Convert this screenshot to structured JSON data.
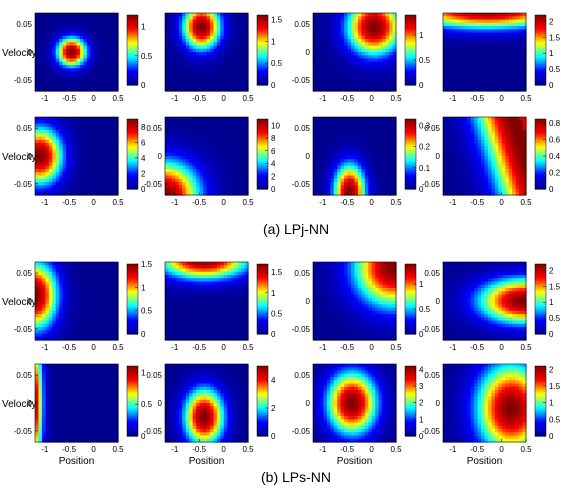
{
  "figure": {
    "caption_a": "(a) LPj-NN",
    "caption_b": "(b) LPs-NN"
  },
  "colormap": [
    "#00008f",
    "#0000ff",
    "#00ffff",
    "#ffff00",
    "#ff0000",
    "#800000"
  ],
  "chart_data": [
    {
      "id": "a-r1-c1",
      "group": "(a) LPj-NN",
      "type": "heatmap",
      "xlabel": "",
      "ylabel": "Velocity",
      "x_ticks": [
        "-1",
        "-0.5",
        "0",
        "0.5"
      ],
      "y_ticks": [
        "0.05",
        "0",
        "-0.05"
      ],
      "xlim": [
        -1.2,
        0.5
      ],
      "ylim": [
        -0.07,
        0.07
      ],
      "colorbar_ticks": [
        "1",
        "0.5",
        "0"
      ],
      "colorbar_range": [
        0,
        1.2
      ],
      "field": {
        "kind": "gauss",
        "cx": -0.45,
        "cy": 0.0,
        "sx": 0.3,
        "sy": 0.026,
        "peak": 1.2
      }
    },
    {
      "id": "a-r1-c2",
      "group": "(a) LPj-NN",
      "type": "heatmap",
      "xlabel": "",
      "ylabel": "",
      "x_ticks": [
        "-1",
        "-0.5",
        "0",
        "0.5"
      ],
      "y_ticks": [],
      "xlim": [
        -1.2,
        0.5
      ],
      "ylim": [
        -0.07,
        0.07
      ],
      "colorbar_ticks": [
        "1.5",
        "1",
        "0.5",
        "0"
      ],
      "colorbar_range": [
        0,
        1.6
      ],
      "field": {
        "kind": "gauss",
        "cx": -0.45,
        "cy": 0.045,
        "sx": 0.38,
        "sy": 0.04,
        "peak": 1.6
      }
    },
    {
      "id": "a-r1-c3",
      "group": "(a) LPj-NN",
      "type": "heatmap",
      "xlabel": "",
      "ylabel": "",
      "x_ticks": [
        "-1",
        "-0.5",
        "0",
        "0.5"
      ],
      "y_ticks": [
        "0.05",
        "0",
        "-0.05"
      ],
      "xlim": [
        -1.2,
        0.5
      ],
      "ylim": [
        -0.07,
        0.07
      ],
      "colorbar_ticks": [
        "1",
        "0.5",
        "0"
      ],
      "colorbar_range": [
        0,
        1.4
      ],
      "field": {
        "kind": "gauss",
        "cx": 0.05,
        "cy": 0.045,
        "sx": 0.55,
        "sy": 0.05,
        "peak": 1.4
      }
    },
    {
      "id": "a-r1-c4",
      "group": "(a) LPj-NN",
      "type": "heatmap",
      "xlabel": "",
      "ylabel": "",
      "x_ticks": [
        "-1",
        "-0.5",
        "0",
        "0.5"
      ],
      "y_ticks": [],
      "xlim": [
        -1.2,
        0.5
      ],
      "ylim": [
        -0.07,
        0.07
      ],
      "colorbar_ticks": [
        "2",
        "1.5",
        "1",
        "0.5",
        "0"
      ],
      "colorbar_range": [
        0,
        2.2
      ],
      "field": {
        "kind": "gauss",
        "cx": -0.3,
        "cy": 0.075,
        "sx": 1.6,
        "sy": 0.032,
        "peak": 2.2
      }
    },
    {
      "id": "a-r2-c1",
      "group": "(a) LPj-NN",
      "type": "heatmap",
      "xlabel": "",
      "ylabel": "Velocity",
      "x_ticks": [
        "-1",
        "-0.5",
        "0",
        "0.5"
      ],
      "y_ticks": [
        "0.05",
        "0",
        "-0.05"
      ],
      "xlim": [
        -1.2,
        0.5
      ],
      "ylim": [
        -0.07,
        0.07
      ],
      "colorbar_ticks": [
        "8",
        "6",
        "4",
        "2",
        "0"
      ],
      "colorbar_range": [
        0,
        9
      ],
      "field": {
        "kind": "gauss",
        "cx": -1.1,
        "cy": 0.0,
        "sx": 0.45,
        "sy": 0.05,
        "peak": 9
      }
    },
    {
      "id": "a-r2-c2",
      "group": "(a) LPj-NN",
      "type": "heatmap",
      "xlabel": "",
      "ylabel": "",
      "x_ticks": [
        "-1",
        "-0.5",
        "0",
        "0.5"
      ],
      "y_ticks": [
        "0.05",
        "0",
        "-0.05"
      ],
      "xlim": [
        -1.2,
        0.5
      ],
      "ylim": [
        -0.07,
        0.07
      ],
      "colorbar_ticks": [
        "10",
        "8",
        "6",
        "4",
        "2",
        "0"
      ],
      "colorbar_range": [
        0,
        11
      ],
      "field": {
        "kind": "gauss",
        "cx": -1.2,
        "cy": -0.07,
        "sx": 0.7,
        "sy": 0.06,
        "peak": 11
      }
    },
    {
      "id": "a-r2-c3",
      "group": "(a) LPj-NN",
      "type": "heatmap",
      "xlabel": "",
      "ylabel": "",
      "x_ticks": [
        "-1",
        "-0.5",
        "0",
        "0.5"
      ],
      "y_ticks": [
        "0.05",
        "0",
        "-0.05"
      ],
      "xlim": [
        -1.2,
        0.5
      ],
      "ylim": [
        -0.07,
        0.07
      ],
      "colorbar_ticks": [
        "0.3",
        "0.2",
        "0.1",
        "0"
      ],
      "colorbar_range": [
        0,
        0.33
      ],
      "field": {
        "kind": "gauss",
        "cx": -0.45,
        "cy": -0.065,
        "sx": 0.32,
        "sy": 0.05,
        "peak": 0.33
      }
    },
    {
      "id": "a-r2-c4",
      "group": "(a) LPj-NN",
      "type": "heatmap",
      "xlabel": "",
      "ylabel": "",
      "x_ticks": [
        "-1",
        "-0.5",
        "0",
        "0.5"
      ],
      "y_ticks": [
        "0.05",
        "0",
        "-0.05"
      ],
      "xlim": [
        -1.2,
        0.5
      ],
      "ylim": [
        -0.07,
        0.07
      ],
      "colorbar_ticks": [
        "0.8",
        "0.6",
        "0.4",
        "0.2",
        "0"
      ],
      "colorbar_range": [
        0,
        0.85
      ],
      "field": {
        "kind": "ramp",
        "x0": 0.5,
        "w": 0.45,
        "tilt": 2.5,
        "peak": 0.85
      }
    },
    {
      "id": "b-r1-c1",
      "group": "(b) LPs-NN",
      "type": "heatmap",
      "xlabel": "",
      "ylabel": "Velocity",
      "x_ticks": [
        "-1",
        "-0.5",
        "0",
        "0.5"
      ],
      "y_ticks": [
        "0.05",
        "0",
        "-0.05"
      ],
      "xlim": [
        -1.2,
        0.5
      ],
      "ylim": [
        -0.07,
        0.07
      ],
      "colorbar_ticks": [
        "1.5",
        "1",
        "0.5",
        "0"
      ],
      "colorbar_range": [
        0,
        1.5
      ],
      "field": {
        "kind": "gauss",
        "cx": -1.2,
        "cy": 0.01,
        "sx": 0.45,
        "sy": 0.06,
        "peak": 1.5
      }
    },
    {
      "id": "b-r1-c2",
      "group": "(b) LPs-NN",
      "type": "heatmap",
      "xlabel": "",
      "ylabel": "",
      "x_ticks": [
        "-1",
        "-0.5",
        "0",
        "0.5"
      ],
      "y_ticks": [],
      "xlim": [
        -1.2,
        0.5
      ],
      "ylim": [
        -0.07,
        0.07
      ],
      "colorbar_ticks": [
        "1.5",
        "1",
        "0.5",
        "0"
      ],
      "colorbar_range": [
        0,
        1.7
      ],
      "field": {
        "kind": "gauss",
        "cx": -0.4,
        "cy": 0.075,
        "sx": 0.9,
        "sy": 0.035,
        "peak": 1.7
      }
    },
    {
      "id": "b-r1-c3",
      "group": "(b) LPs-NN",
      "type": "heatmap",
      "xlabel": "",
      "ylabel": "",
      "x_ticks": [
        "-1",
        "-0.5",
        "0",
        "0.5"
      ],
      "y_ticks": [
        "0.05",
        "0",
        "-0.05"
      ],
      "xlim": [
        -1.2,
        0.5
      ],
      "ylim": [
        -0.07,
        0.07
      ],
      "colorbar_ticks": [
        "1",
        "0.5",
        "0"
      ],
      "colorbar_range": [
        0,
        1.4
      ],
      "field": {
        "kind": "gauss",
        "cx": 0.45,
        "cy": 0.06,
        "sx": 0.8,
        "sy": 0.07,
        "peak": 1.4
      }
    },
    {
      "id": "b-r1-c4",
      "group": "(b) LPs-NN",
      "type": "heatmap",
      "xlabel": "",
      "ylabel": "",
      "x_ticks": [
        "-1",
        "-0.5",
        "0",
        "0.5"
      ],
      "y_ticks": [
        "0.05",
        "0",
        "-0.05"
      ],
      "xlim": [
        -1.2,
        0.5
      ],
      "ylim": [
        -0.07,
        0.07
      ],
      "colorbar_ticks": [
        "2",
        "1.5",
        "1",
        "0.5",
        "0"
      ],
      "colorbar_range": [
        0,
        2.2
      ],
      "field": {
        "kind": "gauss",
        "cx": 0.45,
        "cy": 0.0,
        "sx": 0.9,
        "sy": 0.04,
        "peak": 2.2
      }
    },
    {
      "id": "b-r2-c1",
      "group": "(b) LPs-NN",
      "type": "heatmap",
      "xlabel": "Position",
      "ylabel": "Velocity",
      "x_ticks": [
        "-1",
        "-0.5",
        "0",
        "0.5"
      ],
      "y_ticks": [
        "0.05",
        "0",
        "-0.05"
      ],
      "xlim": [
        -1.2,
        0.5
      ],
      "ylim": [
        -0.07,
        0.07
      ],
      "colorbar_ticks": [
        "1",
        "0.5",
        "0"
      ],
      "colorbar_range": [
        0,
        1.1
      ],
      "field": {
        "kind": "gauss",
        "cx": -1.25,
        "cy": 0.0,
        "sx": 0.2,
        "sy": 0.12,
        "peak": 1.1
      }
    },
    {
      "id": "b-r2-c2",
      "group": "(b) LPs-NN",
      "type": "heatmap",
      "xlabel": "Position",
      "ylabel": "",
      "x_ticks": [
        "-1",
        "-0.5",
        "0",
        "0.5"
      ],
      "y_ticks": [
        "0.05",
        "0",
        "-0.05"
      ],
      "xlim": [
        -1.2,
        0.5
      ],
      "ylim": [
        -0.07,
        0.07
      ],
      "colorbar_ticks": [
        "4",
        "2",
        "0"
      ],
      "colorbar_range": [
        0,
        5
      ],
      "field": {
        "kind": "gauss",
        "cx": -0.4,
        "cy": -0.025,
        "sx": 0.4,
        "sy": 0.05,
        "peak": 5
      }
    },
    {
      "id": "b-r2-c3",
      "group": "(b) LPs-NN",
      "type": "heatmap",
      "xlabel": "Position",
      "ylabel": "",
      "x_ticks": [
        "-1",
        "-0.5",
        "0",
        "0.5"
      ],
      "y_ticks": [
        "0.05",
        "0",
        "-0.05"
      ],
      "xlim": [
        -1.2,
        0.5
      ],
      "ylim": [
        -0.07,
        0.07
      ],
      "colorbar_ticks": [
        "4",
        "3",
        "2",
        "1",
        "0"
      ],
      "colorbar_range": [
        0,
        4.2
      ],
      "field": {
        "kind": "gauss",
        "cx": -0.4,
        "cy": 0.0,
        "sx": 0.5,
        "sy": 0.055,
        "peak": 4.2
      }
    },
    {
      "id": "b-r2-c4",
      "group": "(b) LPs-NN",
      "type": "heatmap",
      "xlabel": "Position",
      "ylabel": "",
      "x_ticks": [
        "-1",
        "-0.5",
        "0",
        "0.5"
      ],
      "y_ticks": [
        "0.05",
        "0",
        "-0.05"
      ],
      "xlim": [
        -1.2,
        0.5
      ],
      "ylim": [
        -0.07,
        0.07
      ],
      "colorbar_ticks": [
        "2",
        "1.5",
        "1",
        "0.5",
        "0"
      ],
      "colorbar_range": [
        0,
        2.1
      ],
      "field": {
        "kind": "gauss",
        "cx": 0.2,
        "cy": -0.01,
        "sx": 0.7,
        "sy": 0.08,
        "peak": 2.1
      }
    }
  ]
}
